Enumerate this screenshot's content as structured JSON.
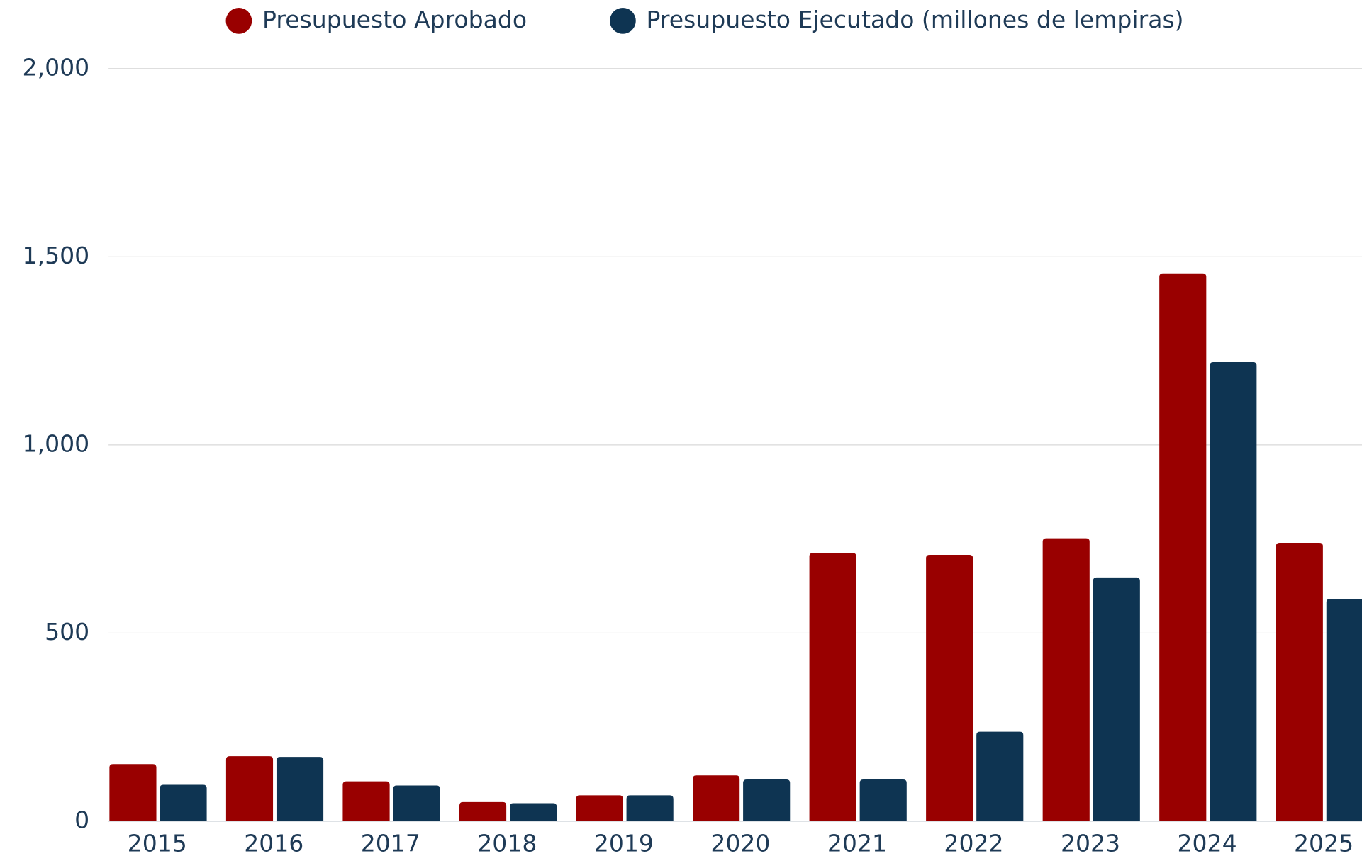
{
  "chart_data": {
    "type": "bar",
    "categories": [
      "2015",
      "2016",
      "2017",
      "2018",
      "2019",
      "2020",
      "2021",
      "2022",
      "2023",
      "2024",
      "2025"
    ],
    "series": [
      {
        "name": "Presupuesto Aprobado",
        "color": "#990000",
        "values": [
          152,
          173,
          106,
          51,
          69,
          122,
          713,
          708,
          752,
          1456,
          740
        ]
      },
      {
        "name": "Presupuesto Ejecutado (millones de lempiras)",
        "color": "#0e3452",
        "values": [
          97,
          171,
          95,
          48,
          69,
          111,
          111,
          238,
          648,
          1220,
          591
        ]
      }
    ],
    "ylim": [
      0,
      2000
    ],
    "yticks": [
      0,
      {
        "value": 500,
        "label": "500"
      },
      {
        "value": 1000,
        "label": "1,000"
      },
      {
        "value": 1500,
        "label": "1,500"
      },
      {
        "value": 2000,
        "label": "2,000"
      }
    ],
    "grid": true,
    "legend": "top"
  }
}
